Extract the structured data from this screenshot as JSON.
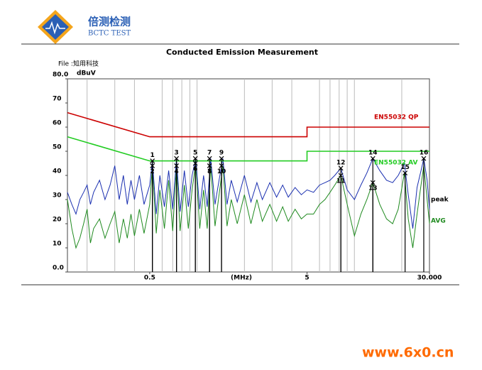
{
  "header": {
    "brand": "倍测检测",
    "brand_en": "BCTC TEST"
  },
  "watermark": "www.6x0.cn",
  "chart_data": {
    "type": "line",
    "title": "Conducted Emission Measurement",
    "file_label": "File :知用科技",
    "y_label": "dBuV",
    "x_label": "(MHz)",
    "log_x": true,
    "xlim": [
      0.15,
      30
    ],
    "xticks": [
      0.5,
      5,
      {
        "value": 30,
        "label": "30.000"
      }
    ],
    "xgrid": [
      0.2,
      0.3,
      0.4,
      0.6,
      0.7,
      0.8,
      0.9,
      1,
      2,
      3,
      4,
      6,
      7,
      8,
      9,
      10,
      20
    ],
    "ylim": [
      0,
      80
    ],
    "yticks": [
      {
        "value": 0,
        "label": "0.0"
      },
      10,
      20,
      30,
      40,
      50,
      60,
      70,
      {
        "value": 80,
        "label": "80.0"
      }
    ],
    "limits": [
      {
        "name": "EN55032  QP",
        "color": "#cc0000",
        "x": [
          0.15,
          0.5,
          5,
          5,
          30
        ],
        "values": [
          66,
          56,
          56,
          60,
          60
        ]
      },
      {
        "name": "EN55032 AV",
        "color": "#22cc22",
        "x": [
          0.15,
          0.5,
          5,
          5,
          30
        ],
        "values": [
          56,
          46,
          46,
          50,
          50
        ]
      }
    ],
    "traces": [
      {
        "name": "peak",
        "color": "#1a2fb0",
        "x": [
          0.15,
          0.16,
          0.17,
          0.18,
          0.19,
          0.2,
          0.21,
          0.22,
          0.24,
          0.26,
          0.28,
          0.3,
          0.32,
          0.34,
          0.36,
          0.38,
          0.4,
          0.43,
          0.46,
          0.5,
          0.52,
          0.55,
          0.58,
          0.62,
          0.66,
          0.7,
          0.74,
          0.78,
          0.83,
          0.88,
          0.93,
          0.98,
          1.04,
          1.1,
          1.16,
          1.22,
          1.3,
          1.38,
          1.46,
          1.55,
          1.65,
          1.8,
          2,
          2.2,
          2.4,
          2.6,
          2.9,
          3.2,
          3.5,
          3.8,
          4.2,
          4.6,
          5,
          5.5,
          6,
          6.5,
          7,
          7.5,
          8.2,
          9,
          10,
          11,
          12,
          13.1,
          14.5,
          16,
          17.5,
          19,
          20.8,
          22,
          23.5,
          25,
          26.5,
          27.6,
          29,
          30
        ],
        "values": [
          33,
          28,
          24,
          30,
          33,
          36,
          28,
          33,
          38,
          30,
          36,
          44,
          30,
          40,
          28,
          38,
          30,
          40,
          28,
          36,
          46,
          24,
          40,
          27,
          42,
          26,
          47,
          25,
          42,
          27,
          40,
          47,
          26,
          40,
          27,
          47,
          28,
          38,
          47,
          28,
          38,
          29,
          40,
          29,
          37,
          30,
          37,
          31,
          36,
          31,
          35,
          32,
          34,
          33,
          36,
          37,
          38,
          40,
          43,
          34,
          30,
          36,
          41,
          47,
          42,
          38,
          37,
          40,
          45,
          32,
          18,
          35,
          42,
          47,
          38,
          26
        ]
      },
      {
        "name": "AVG",
        "color": "#1f8a1f",
        "x": [
          0.15,
          0.16,
          0.17,
          0.18,
          0.19,
          0.2,
          0.21,
          0.22,
          0.24,
          0.26,
          0.28,
          0.3,
          0.32,
          0.34,
          0.36,
          0.38,
          0.4,
          0.43,
          0.46,
          0.5,
          0.52,
          0.55,
          0.58,
          0.62,
          0.66,
          0.7,
          0.74,
          0.78,
          0.83,
          0.88,
          0.93,
          0.98,
          1.04,
          1.1,
          1.16,
          1.22,
          1.3,
          1.38,
          1.46,
          1.55,
          1.65,
          1.8,
          2,
          2.2,
          2.4,
          2.6,
          2.9,
          3.2,
          3.5,
          3.8,
          4.2,
          4.6,
          5,
          5.5,
          6,
          6.5,
          7,
          7.5,
          8.2,
          9,
          10,
          11,
          12,
          13.1,
          14.5,
          16,
          17.5,
          19,
          20.8,
          22,
          23.5,
          25,
          26.5,
          27.6,
          29,
          30
        ],
        "values": [
          30,
          18,
          10,
          14,
          20,
          26,
          12,
          18,
          22,
          14,
          20,
          25,
          12,
          22,
          14,
          24,
          15,
          26,
          16,
          28,
          44,
          16,
          34,
          18,
          38,
          17,
          44,
          17,
          36,
          18,
          34,
          45,
          18,
          34,
          18,
          44,
          19,
          32,
          44,
          19,
          30,
          20,
          32,
          20,
          30,
          21,
          28,
          21,
          27,
          21,
          26,
          22,
          24,
          24,
          28,
          30,
          33,
          36,
          40,
          28,
          15,
          24,
          30,
          37,
          28,
          22,
          20,
          26,
          41,
          22,
          10,
          24,
          36,
          44,
          30,
          20
        ]
      }
    ],
    "markers": [
      {
        "label": "1",
        "x": 0.52,
        "value": 46
      },
      {
        "label": "2",
        "x": 0.52,
        "value": 44
      },
      {
        "label": "3",
        "x": 0.74,
        "value": 47
      },
      {
        "label": "4",
        "x": 0.74,
        "value": 44
      },
      {
        "label": "5",
        "x": 0.975,
        "value": 47
      },
      {
        "label": "6",
        "x": 0.975,
        "value": 45
      },
      {
        "label": "7",
        "x": 1.2,
        "value": 47
      },
      {
        "label": "8",
        "x": 1.2,
        "value": 44
      },
      {
        "label": "9",
        "x": 1.43,
        "value": 47
      },
      {
        "label": "10",
        "x": 1.43,
        "value": 44
      },
      {
        "label": "11",
        "x": 8.2,
        "value": 40
      },
      {
        "label": "12",
        "x": 8.2,
        "value": 43
      },
      {
        "label": "13",
        "x": 13.1,
        "value": 37
      },
      {
        "label": "14",
        "x": 13.1,
        "value": 47
      },
      {
        "label": "15",
        "x": 21,
        "value": 41
      },
      {
        "label": "16",
        "x": 27.6,
        "value": 47
      }
    ]
  }
}
